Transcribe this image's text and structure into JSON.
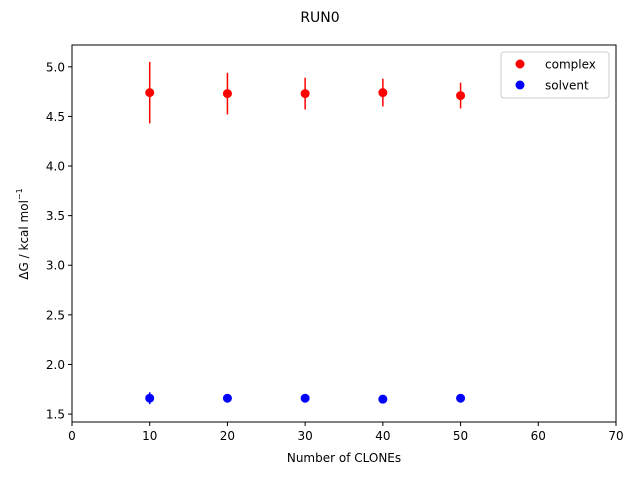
{
  "chart_data": {
    "type": "scatter",
    "title": "RUN0",
    "xlabel": "Number of CLONEs",
    "ylabel_main": "ΔG / kcal mol",
    "ylabel_sup": "−1",
    "xlim": [
      0,
      70
    ],
    "ylim": [
      1.42,
      5.22
    ],
    "xticks": [
      0,
      10,
      20,
      30,
      40,
      50,
      60,
      70
    ],
    "xtick_labels": [
      "0",
      "10",
      "20",
      "30",
      "40",
      "50",
      "60",
      "70"
    ],
    "yticks": [
      1.5,
      2.0,
      2.5,
      3.0,
      3.5,
      4.0,
      4.5,
      5.0
    ],
    "ytick_labels": [
      "1.5",
      "2.0",
      "2.5",
      "3.0",
      "3.5",
      "4.0",
      "4.5",
      "5.0"
    ],
    "grid": false,
    "legend_position": "top-right",
    "x": [
      10,
      20,
      30,
      40,
      50
    ],
    "series": [
      {
        "name": "complex",
        "color": "#ff0000",
        "values": [
          4.74,
          4.73,
          4.73,
          4.74,
          4.71
        ],
        "errors": [
          0.31,
          0.21,
          0.16,
          0.14,
          0.13
        ]
      },
      {
        "name": "solvent",
        "color": "#0000ff",
        "values": [
          1.66,
          1.66,
          1.66,
          1.65,
          1.66
        ],
        "errors": [
          0.06,
          0.02,
          0.02,
          0.02,
          0.02
        ]
      }
    ]
  }
}
